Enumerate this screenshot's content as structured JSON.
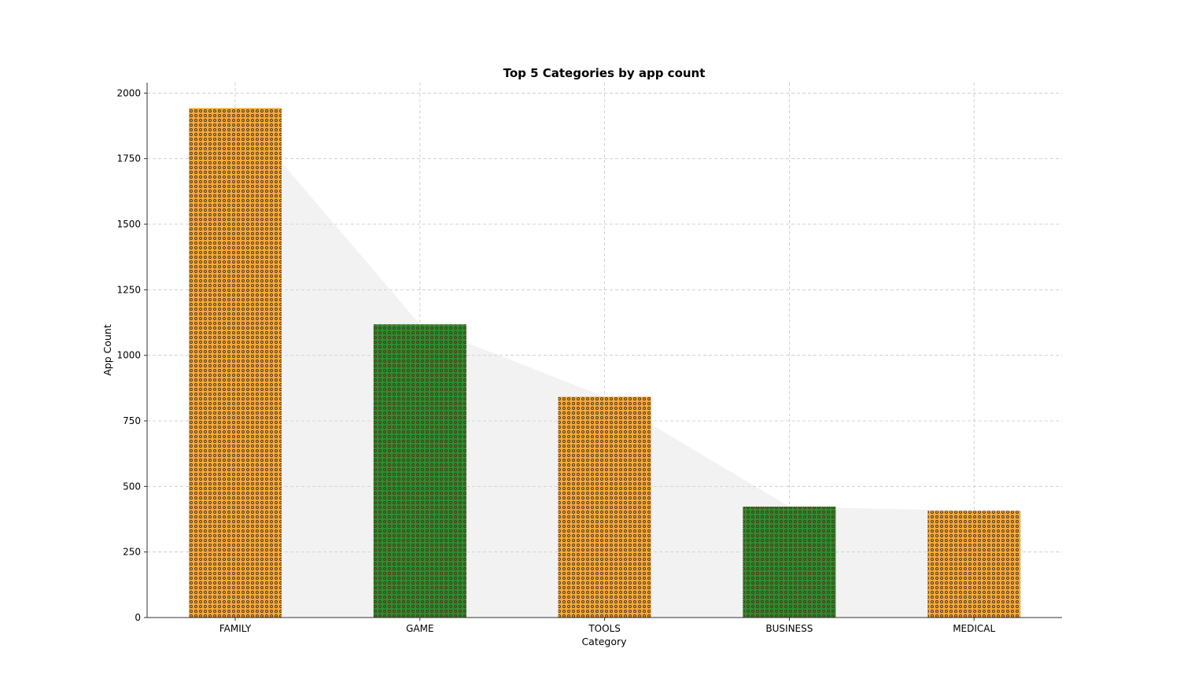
{
  "chart_data": {
    "type": "bar",
    "title": "Top 5 Categories by app count",
    "xlabel": "Category",
    "ylabel": "App Count",
    "categories": [
      "FAMILY",
      "GAME",
      "TOOLS",
      "BUSINESS",
      "MEDICAL"
    ],
    "values": [
      1943,
      1118,
      842,
      423,
      407
    ],
    "ylim": [
      0,
      2040
    ],
    "yticks": [
      0,
      250,
      500,
      750,
      1000,
      1250,
      1500,
      1750,
      2000
    ],
    "ytick_labels": [
      "0",
      "250",
      "500",
      "750",
      "1000",
      "1250",
      "1500",
      "1750",
      "2000"
    ],
    "grid": true,
    "legend": false,
    "area_under_bars": true,
    "colors": {
      "bar_alternate": [
        "#f5a83b",
        "#2e8b2e"
      ],
      "dots": "#4a3519",
      "area": "#d9d9d9",
      "grid": "#c8c8c8",
      "axis": "#555555"
    }
  }
}
